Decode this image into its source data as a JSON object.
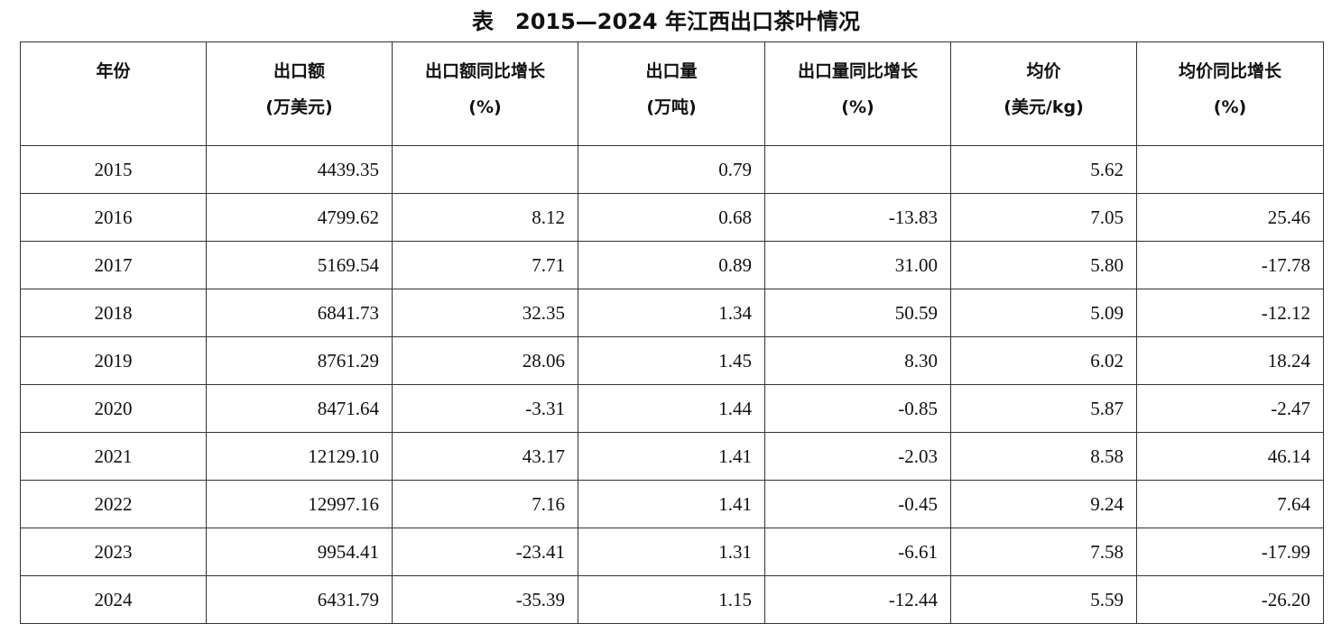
{
  "title": "表　2015—2024 年江西出口茶叶情况",
  "table": {
    "headers": [
      [
        "年份"
      ],
      [
        "出口额",
        "(万美元)"
      ],
      [
        "出口额同比增长",
        "(%)"
      ],
      [
        "出口量",
        "(万吨)"
      ],
      [
        "出口量同比增长",
        "(%)"
      ],
      [
        "均价",
        "(美元/kg)"
      ],
      [
        "均价同比增长",
        "(%)"
      ]
    ],
    "rows": [
      [
        "2015",
        "4439.35",
        null,
        "0.79",
        null,
        "5.62",
        null
      ],
      [
        "2016",
        "4799.62",
        "8.12",
        "0.68",
        "-13.83",
        "7.05",
        "25.46"
      ],
      [
        "2017",
        "5169.54",
        "7.71",
        "0.89",
        "31.00",
        "5.80",
        "-17.78"
      ],
      [
        "2018",
        "6841.73",
        "32.35",
        "1.34",
        "50.59",
        "5.09",
        "-12.12"
      ],
      [
        "2019",
        "8761.29",
        "28.06",
        "1.45",
        "8.30",
        "6.02",
        "18.24"
      ],
      [
        "2020",
        "8471.64",
        "-3.31",
        "1.44",
        "-0.85",
        "5.87",
        "-2.47"
      ],
      [
        "2021",
        "12129.10",
        "43.17",
        "1.41",
        "-2.03",
        "8.58",
        "46.14"
      ],
      [
        "2022",
        "12997.16",
        "7.16",
        "1.41",
        "-0.45",
        "9.24",
        "7.64"
      ],
      [
        "2023",
        "9954.41",
        "-23.41",
        "1.31",
        "-6.61",
        "7.58",
        "-17.99"
      ],
      [
        "2024",
        "6431.79",
        "-35.39",
        "1.15",
        "-12.44",
        "5.59",
        "-26.20"
      ]
    ]
  }
}
